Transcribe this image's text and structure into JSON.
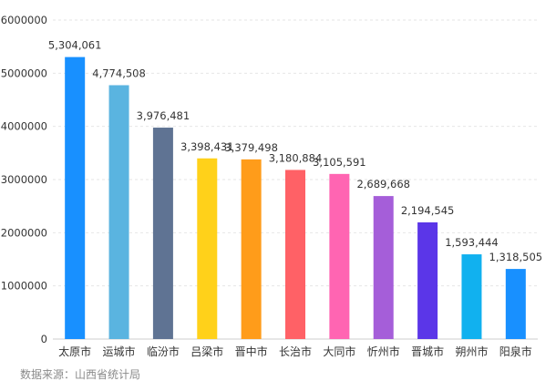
{
  "chart_data": {
    "type": "bar",
    "title": "",
    "xlabel": "",
    "ylabel": "",
    "categories": [
      "太原市",
      "运城市",
      "临汾市",
      "吕梁市",
      "晋中市",
      "长治市",
      "大同市",
      "忻州市",
      "晋城市",
      "朔州市",
      "阳泉市"
    ],
    "values": [
      5304061,
      4774508,
      3976481,
      3398431,
      3379498,
      3180884,
      3105591,
      2689668,
      2194545,
      1593444,
      1318505
    ],
    "value_labels": [
      "5,304,061",
      "4,774,508",
      "3,976,481",
      "3,398,431",
      "3,379,498",
      "3,180,884",
      "3,105,591",
      "2,689,668",
      "2,194,545",
      "1,593,444",
      "1,318,505"
    ],
    "colors": [
      "#1890ff",
      "#5ab4e0",
      "#5f7393",
      "#ffd11a",
      "#ff9c1a",
      "#ff6166",
      "#ff65b2",
      "#a55ed9",
      "#5b36e8",
      "#11b1ef",
      "#1890ff"
    ],
    "ylim": [
      0,
      6000000
    ],
    "yticks": [
      0,
      1000000,
      2000000,
      3000000,
      4000000,
      5000000,
      6000000
    ],
    "ytick_labels": [
      "0",
      "1000000",
      "2000000",
      "3000000",
      "4000000",
      "5000000",
      "6000000"
    ],
    "grid": true
  },
  "source_note": "数据来源：山西省统计局"
}
